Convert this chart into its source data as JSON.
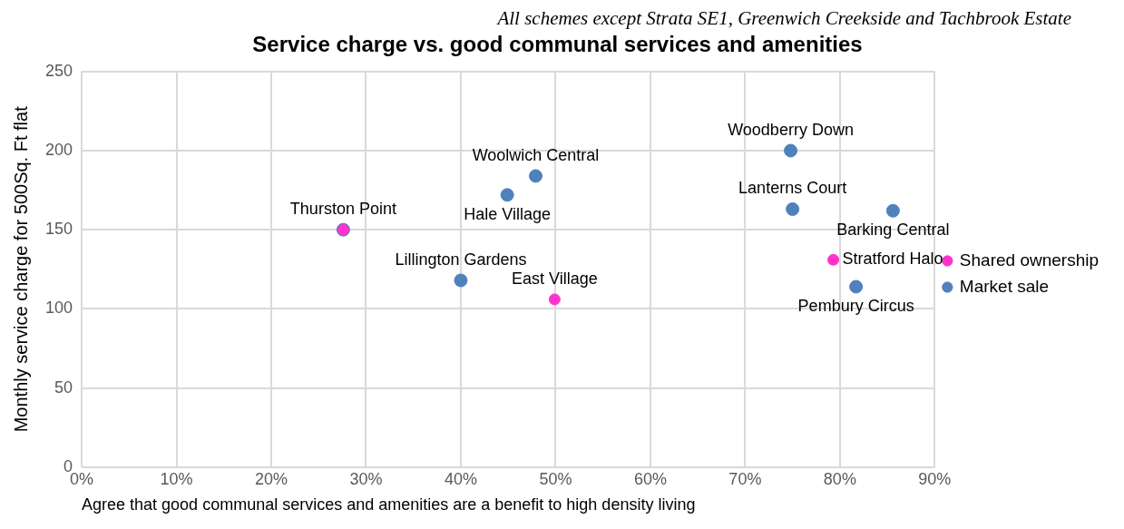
{
  "chart_data": {
    "type": "scatter",
    "title": "Service charge vs. good communal services and amenities",
    "subtitle": "All schemes except Strata SE1, Greenwich Creekside and Tachbrook Estate",
    "xlabel": "Agree that good communal services and amenities are a benefit to high density living",
    "ylabel": "Monthly service charge for 500Sq. Ft flat",
    "series": [
      {
        "name": "Shared ownership",
        "color": "#ff33cc",
        "x": [
          27.6,
          49.9,
          79.3
        ],
        "values": [
          150,
          106,
          131
        ]
      },
      {
        "name": "Market sale",
        "color": "#4f81bd",
        "x": [
          27.6,
          40,
          44.9,
          47.9,
          74.8,
          75,
          85.6,
          81.7
        ],
        "values": [
          150,
          118,
          172,
          184,
          200,
          163,
          162,
          114
        ]
      }
    ],
    "xlim": [
      0,
      90
    ],
    "xticks": [
      {
        "value": 0,
        "label": "0%"
      },
      {
        "value": 10,
        "label": "10%"
      },
      {
        "value": 20,
        "label": "20%"
      },
      {
        "value": 30,
        "label": "30%"
      },
      {
        "value": 40,
        "label": "40%"
      },
      {
        "value": 50,
        "label": "50%"
      },
      {
        "value": 60,
        "label": "60%"
      },
      {
        "value": 70,
        "label": "70%"
      },
      {
        "value": 80,
        "label": "80%"
      },
      {
        "value": 90,
        "label": "90%"
      }
    ],
    "ylim": [
      0,
      250
    ],
    "yticks": [
      0,
      50,
      100,
      150,
      200,
      250
    ],
    "annotations": [
      {
        "text": "Thurston Point",
        "x": 27.6,
        "y": 150
      },
      {
        "text": "Lillington Gardens",
        "x": 40,
        "y": 118
      },
      {
        "text": "Woolwich Central",
        "x": 47.9,
        "y": 184
      },
      {
        "text": "Hale Village",
        "x": 44.9,
        "y": 172
      },
      {
        "text": "East Village",
        "x": 49.9,
        "y": 106
      },
      {
        "text": "Woodberry Down",
        "x": 74.8,
        "y": 200
      },
      {
        "text": "Lanterns Court",
        "x": 75,
        "y": 163
      },
      {
        "text": "Barking Central",
        "x": 85.6,
        "y": 162
      },
      {
        "text": "Stratford Halo",
        "x": 79.3,
        "y": 131
      },
      {
        "text": "Pembury Circus",
        "x": 81.7,
        "y": 114
      }
    ],
    "grid": true,
    "legend": "right",
    "marker": "circle"
  }
}
